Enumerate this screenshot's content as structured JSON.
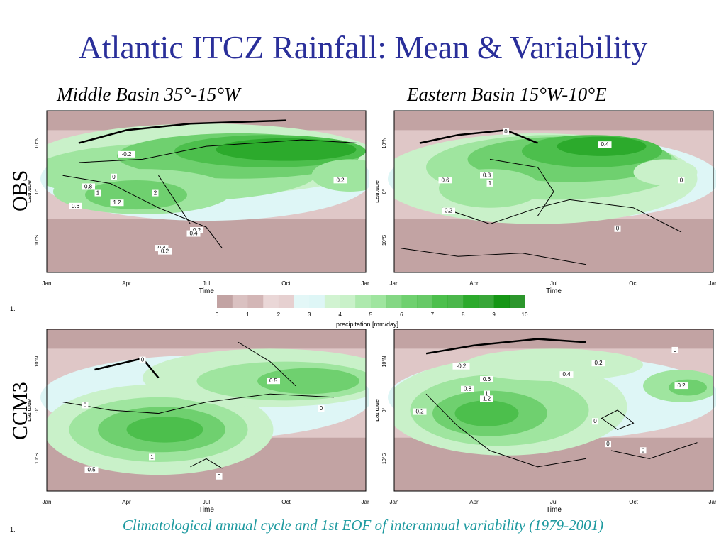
{
  "slide": {
    "title": "Atlantic ITCZ Rainfall: Mean & Variability",
    "col_titles": [
      "Middle Basin 35°-15°W",
      "Eastern Basin 15°W-10°E"
    ],
    "row_labels": [
      "OBS",
      "CCM3"
    ],
    "footnote_marks": [
      "1.",
      "1."
    ],
    "caption": "Climatological annual cycle and 1st EOF of interannual variability (1979-2001)"
  },
  "chart_data": [
    {
      "type": "heatmap",
      "panel": "OBS Middle Basin 35°-15°W",
      "xlabel": "Time",
      "ylabel": "Latitude",
      "x_ticks": [
        "Jan",
        "Apr",
        "Jul",
        "Oct",
        "Jan"
      ],
      "y_ticks": [
        "10°N",
        "0°",
        "10°S"
      ],
      "contour_labels": [
        "-0.2",
        "0",
        "0.2",
        "0.4",
        "0.8",
        "1",
        "1.2",
        "2",
        "0.6",
        "0.4",
        "0.2",
        "0.2"
      ]
    },
    {
      "type": "heatmap",
      "panel": "OBS Eastern Basin 15°W-10°E",
      "xlabel": "Time",
      "ylabel": "Latitude",
      "x_ticks": [
        "Jan",
        "Apr",
        "Jul",
        "Oct",
        "Jan"
      ],
      "y_ticks": [
        "10°N",
        "0°",
        "10°S"
      ],
      "contour_labels": [
        "0",
        "0.4",
        "0.6",
        "0.8",
        "1",
        "0.2",
        "0",
        "0"
      ]
    },
    {
      "type": "heatmap",
      "panel": "CCM3 Middle Basin 35°-15°W",
      "xlabel": "Time",
      "ylabel": "Latitude",
      "x_ticks": [
        "Jan",
        "Apr",
        "Jul",
        "Oct",
        "Jan"
      ],
      "y_ticks": [
        "10°N",
        "0°",
        "10°S"
      ],
      "contour_labels": [
        "0",
        "0",
        "0.5",
        "0",
        "1",
        "0.5",
        "0"
      ]
    },
    {
      "type": "heatmap",
      "panel": "CCM3 Eastern Basin 15°W-10°E",
      "xlabel": "Time",
      "ylabel": "Latitude",
      "x_ticks": [
        "Jan",
        "Apr",
        "Jul",
        "Oct",
        "Jan"
      ],
      "y_ticks": [
        "10°N",
        "0°",
        "10°S"
      ],
      "contour_labels": [
        "0",
        "-0.2",
        "0.6",
        "0.8",
        "1",
        "1.2",
        "0.4",
        "0.2",
        "0.2",
        "0.2",
        "0",
        "0",
        "0"
      ]
    }
  ],
  "colorbar": {
    "label": "precipitation [mm/day]",
    "ticks": [
      "0",
      "1",
      "2",
      "3",
      "4",
      "5",
      "6",
      "7",
      "8",
      "9",
      "10"
    ],
    "colors": [
      "#c2a3a3",
      "#d3b6b6",
      "#e6d0d0",
      "#def6f6",
      "#c9f1c9",
      "#9fe59f",
      "#6fd06f",
      "#4cbf4c",
      "#2caa2c",
      "#159615",
      "#078407"
    ]
  }
}
